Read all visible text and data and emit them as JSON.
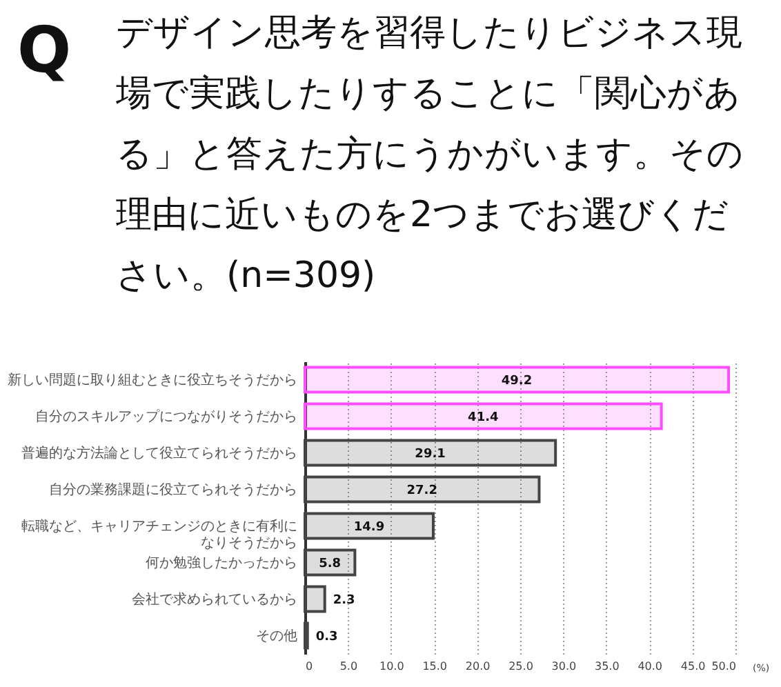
{
  "chart_data": {
    "type": "bar",
    "orientation": "horizontal",
    "title": "デザイン思考を習得したりビジネス現場で実践したりすることに「関心がある」と答えた方にうかがいます。その理由に近いものを2つまでお選びください。(n=309)",
    "annotations": [
      "Q"
    ],
    "xlabel": "(%)",
    "categories": [
      "新しい問題に取り組むときに役立ちそうだから",
      "自分のスキルアップにつながりそうだから",
      "普遍的な方法論として役立てられそうだから",
      "自分の業務課題に役立てられそうだから",
      "転職など、キャリアチェンジのときに有利になりそうだから",
      "何か勉強したかったから",
      "会社で求められているから",
      "その他"
    ],
    "values": [
      49.2,
      41.4,
      29.1,
      27.2,
      14.9,
      5.8,
      2.3,
      0.3
    ],
    "colors": [
      "#ff4dff",
      "#ff4dff",
      "#444444",
      "#444444",
      "#444444",
      "#444444",
      "#444444",
      "#444444"
    ],
    "xlim": [
      0,
      50
    ],
    "xticks": [
      0,
      {
        "value": 5,
        "label": "5.0"
      },
      {
        "value": 10,
        "label": "10.0"
      },
      {
        "value": 15,
        "label": "15.0"
      },
      {
        "value": 20,
        "label": "20.0"
      },
      {
        "value": 25,
        "label": "25.0"
      },
      {
        "value": 30,
        "label": "30.0"
      },
      {
        "value": 35,
        "label": "35.0"
      },
      {
        "value": 40,
        "label": "40.0"
      },
      {
        "value": 45,
        "label": "45.0"
      },
      {
        "value": 50,
        "label": "50.0"
      }
    ],
    "grid": "x",
    "data_labels": true
  }
}
